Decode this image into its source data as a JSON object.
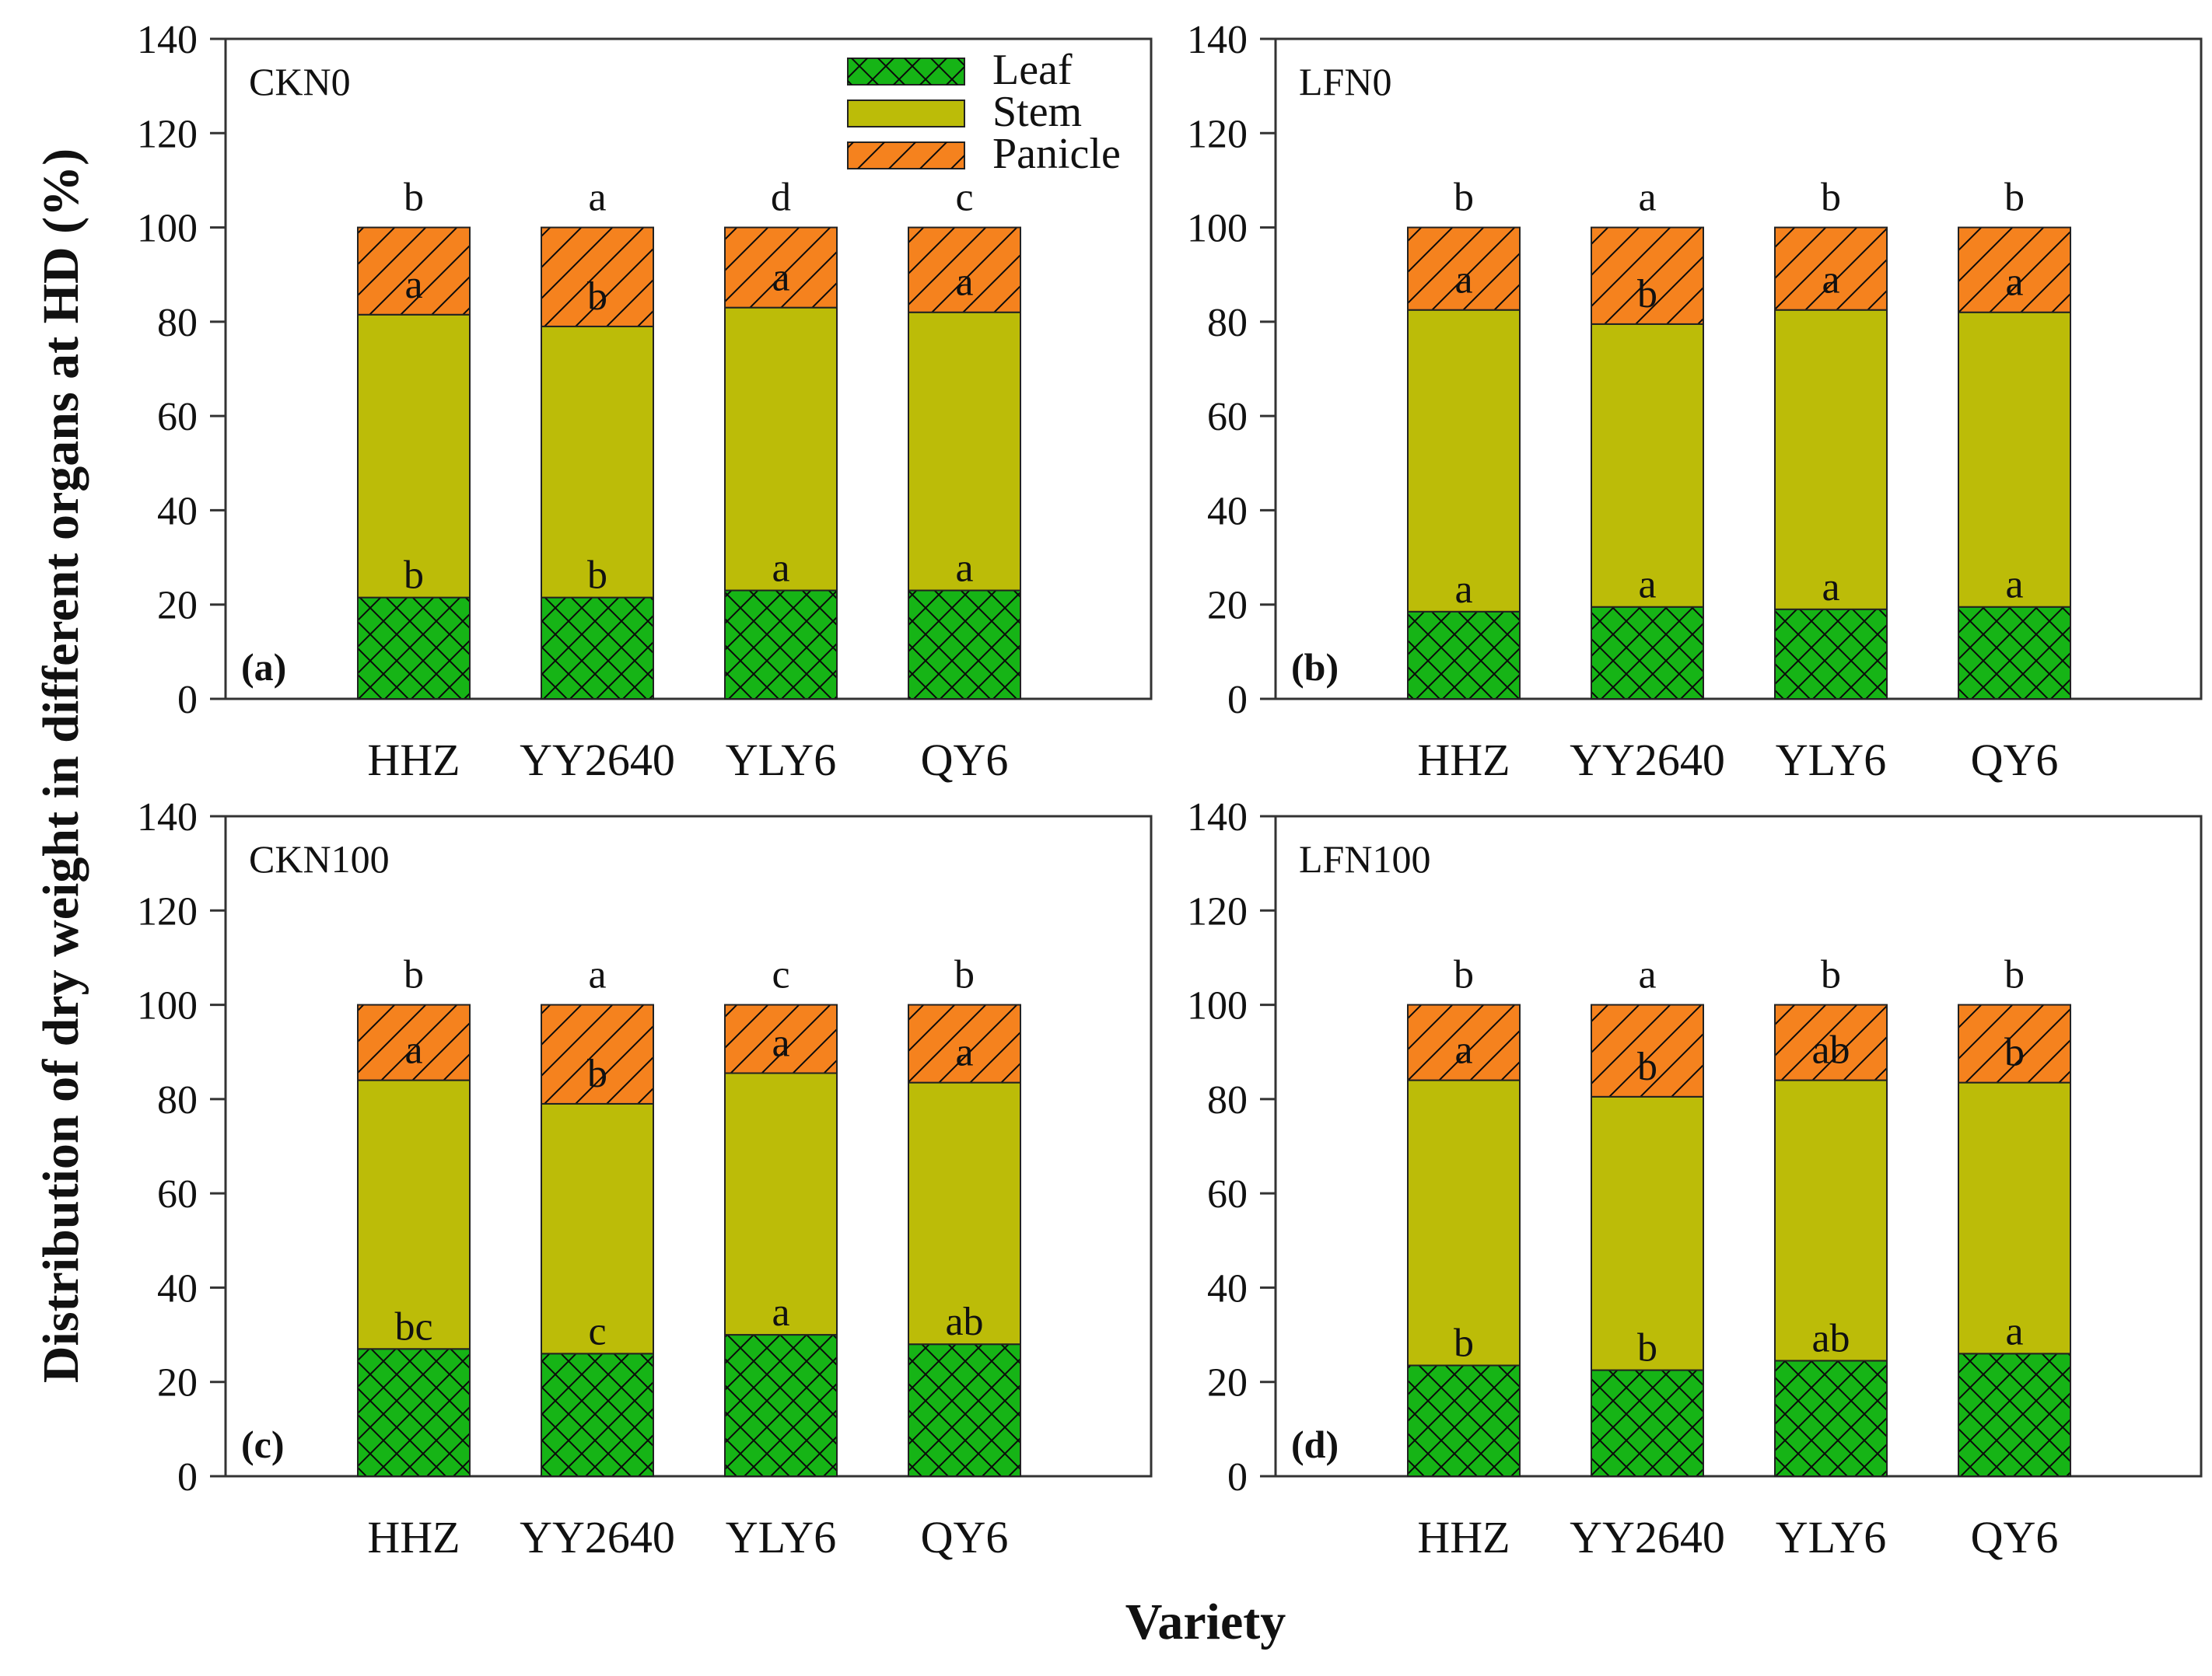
{
  "colors": {
    "leaf": "#16b416",
    "stem": "#bcbc08",
    "panicle": "#f5821e",
    "frame": "#333333"
  },
  "chart_data": {
    "type": "bar",
    "stacked": true,
    "ylabel": "Distribution of dry weight in different organs at HD (%)",
    "xlabel": "Variety",
    "ylim": [
      0,
      140
    ],
    "yticks": [
      "0",
      "20",
      "40",
      "60",
      "80",
      "100",
      "120",
      "140"
    ],
    "legend": [
      "Leaf",
      "Stem",
      "Panicle"
    ],
    "legend_position": "top-right of panel (a)",
    "panels": [
      {
        "id": "(a)",
        "label": "CKN0",
        "categories": [
          "HHZ",
          "YY2640",
          "YLY6",
          "QY6"
        ],
        "series": [
          {
            "name": "Leaf",
            "values": [
              21.5,
              21.5,
              23,
              23
            ]
          },
          {
            "name": "Stem",
            "values": [
              60,
              57.5,
              60,
              59
            ]
          },
          {
            "name": "Panicle",
            "values": [
              18.5,
              21,
              17,
              18
            ]
          }
        ],
        "top_letters": [
          "b",
          "a",
          "d",
          "c"
        ],
        "panicle_letters": [
          "a",
          "b",
          "a",
          "a"
        ],
        "leaf_letters": [
          "b",
          "b",
          "a",
          "a"
        ]
      },
      {
        "id": "(b)",
        "label": "LFN0",
        "categories": [
          "HHZ",
          "YY2640",
          "YLY6",
          "QY6"
        ],
        "series": [
          {
            "name": "Leaf",
            "values": [
              18.5,
              19.5,
              19,
              19.5
            ]
          },
          {
            "name": "Stem",
            "values": [
              64,
              60,
              63.5,
              62.5
            ]
          },
          {
            "name": "Panicle",
            "values": [
              17.5,
              20.5,
              17.5,
              18
            ]
          }
        ],
        "top_letters": [
          "b",
          "a",
          "b",
          "b"
        ],
        "panicle_letters": [
          "a",
          "b",
          "a",
          "a"
        ],
        "leaf_letters": [
          "a",
          "a",
          "a",
          "a"
        ]
      },
      {
        "id": "(c)",
        "label": "CKN100",
        "categories": [
          "HHZ",
          "YY2640",
          "YLY6",
          "QY6"
        ],
        "series": [
          {
            "name": "Leaf",
            "values": [
              27,
              26,
              30,
              28
            ]
          },
          {
            "name": "Stem",
            "values": [
              57,
              53,
              55.5,
              55.5
            ]
          },
          {
            "name": "Panicle",
            "values": [
              16,
              21,
              14.5,
              16.5
            ]
          }
        ],
        "top_letters": [
          "b",
          "a",
          "c",
          "b"
        ],
        "panicle_letters": [
          "a",
          "b",
          "a",
          "a"
        ],
        "leaf_letters": [
          "bc",
          "c",
          "a",
          "ab"
        ]
      },
      {
        "id": "(d)",
        "label": "LFN100",
        "categories": [
          "HHZ",
          "YY2640",
          "YLY6",
          "QY6"
        ],
        "series": [
          {
            "name": "Leaf",
            "values": [
              23.5,
              22.5,
              24.5,
              26
            ]
          },
          {
            "name": "Stem",
            "values": [
              60.5,
              58,
              59.5,
              57.5
            ]
          },
          {
            "name": "Panicle",
            "values": [
              16,
              19.5,
              16,
              16.5
            ]
          }
        ],
        "top_letters": [
          "b",
          "a",
          "b",
          "b"
        ],
        "panicle_letters": [
          "a",
          "b",
          "ab",
          "b"
        ],
        "leaf_letters": [
          "b",
          "b",
          "ab",
          "a"
        ]
      }
    ]
  }
}
